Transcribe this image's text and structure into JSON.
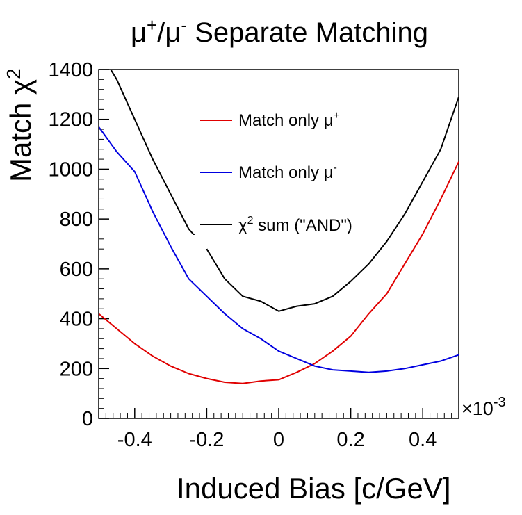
{
  "chart_data": {
    "type": "line",
    "title_base": "μ",
    "title_sup1": "+",
    "title_mid": "/μ",
    "title_sup2": "-",
    "title_tail": " Separate Matching",
    "xlabel": "Induced Bias [c/GeV]",
    "ylabel_base": "Match χ",
    "ylabel_sup": "2",
    "x_multiplier_base": "×10",
    "x_multiplier_exp": "-3",
    "xlim": [
      -0.5,
      0.5
    ],
    "ylim": [
      0,
      1400
    ],
    "x_ticks": [
      "-0.4",
      "-0.2",
      "0",
      "0.2",
      "0.4"
    ],
    "x_tick_values": [
      -0.4,
      -0.2,
      0,
      0.2,
      0.4
    ],
    "y_ticks": [
      "0",
      "200",
      "400",
      "600",
      "800",
      "1000",
      "1200",
      "1400"
    ],
    "y_tick_values": [
      0,
      200,
      400,
      600,
      800,
      1000,
      1200,
      1400
    ],
    "legend": [
      {
        "base": "Match only μ",
        "sup": "+",
        "color": "#e00000"
      },
      {
        "base": "Match only μ",
        "sup": "-",
        "color": "#0000e0"
      },
      {
        "base": "χ",
        "sup": "2",
        "tail": " sum (\"AND\")",
        "color": "#000000"
      }
    ],
    "series": [
      {
        "color": "#e00000",
        "x": [
          -0.5,
          -0.45,
          -0.4,
          -0.35,
          -0.3,
          -0.25,
          -0.2,
          -0.15,
          -0.1,
          -0.05,
          0,
          0.05,
          0.1,
          0.15,
          0.2,
          0.25,
          0.3,
          0.35,
          0.4,
          0.45,
          0.5
        ],
        "y": [
          420,
          360,
          300,
          250,
          210,
          180,
          160,
          145,
          140,
          150,
          155,
          185,
          220,
          270,
          330,
          420,
          500,
          620,
          740,
          880,
          1030
        ]
      },
      {
        "color": "#0000e0",
        "x": [
          -0.5,
          -0.45,
          -0.4,
          -0.35,
          -0.3,
          -0.25,
          -0.2,
          -0.15,
          -0.1,
          -0.05,
          0,
          0.05,
          0.1,
          0.15,
          0.2,
          0.25,
          0.3,
          0.35,
          0.4,
          0.45,
          0.5
        ],
        "y": [
          1170,
          1070,
          990,
          830,
          690,
          560,
          490,
          420,
          360,
          320,
          270,
          240,
          210,
          195,
          190,
          185,
          190,
          200,
          215,
          230,
          255
        ]
      },
      {
        "color": "#000000",
        "x": [
          -0.5,
          -0.45,
          -0.4,
          -0.35,
          -0.3,
          -0.25,
          -0.2,
          -0.15,
          -0.1,
          -0.05,
          0,
          0.05,
          0.1,
          0.15,
          0.2,
          0.25,
          0.3,
          0.35,
          0.4,
          0.45,
          0.5
        ],
        "y": [
          1480,
          1360,
          1200,
          1040,
          900,
          760,
          680,
          560,
          490,
          470,
          430,
          450,
          460,
          490,
          550,
          620,
          710,
          820,
          950,
          1080,
          1290
        ]
      }
    ]
  }
}
